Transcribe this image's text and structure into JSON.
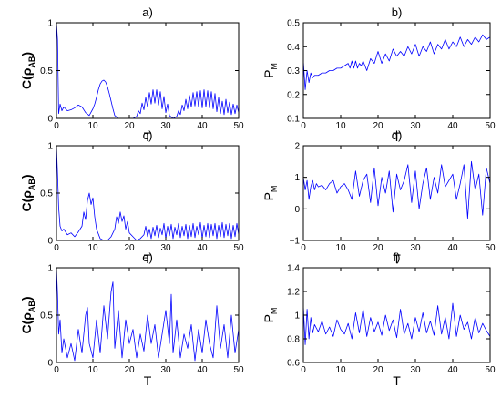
{
  "figure": {
    "line_color": "#0000ff"
  },
  "chart_data": [
    {
      "id": "a",
      "panel_label": "a)",
      "type": "line",
      "xlabel": "T",
      "ylabel_main": "C(ρ",
      "ylabel_sub": "AB",
      "ylabel_end": ")",
      "xlim": [
        0,
        50
      ],
      "ylim": [
        0,
        1
      ],
      "xticks": [
        0,
        10,
        20,
        30,
        40,
        50
      ],
      "yticks": [
        0,
        0.5,
        1
      ],
      "ytick_labels": [
        "0",
        "0.5",
        "1"
      ],
      "grid": false,
      "x": [
        0,
        0.3,
        0.6,
        1,
        1.5,
        2,
        3,
        4,
        5,
        6,
        7,
        8,
        9,
        10,
        10.5,
        11,
        11.5,
        12,
        12.5,
        13,
        13.5,
        14,
        14.5,
        15,
        15.5,
        16,
        17,
        18,
        19,
        20,
        21,
        22,
        22.5,
        23,
        23.5,
        24,
        24.5,
        25,
        25.5,
        26,
        26.5,
        27,
        27.5,
        28,
        28.5,
        29,
        29.5,
        30,
        30.5,
        31,
        32,
        33,
        33.5,
        34,
        34.5,
        35,
        35.5,
        36,
        36.5,
        37,
        37.5,
        38,
        38.5,
        39,
        39.5,
        40,
        40.5,
        41,
        41.5,
        42,
        42.5,
        43,
        43.5,
        44,
        44.5,
        45,
        45.5,
        46,
        46.5,
        47,
        47.5,
        48,
        48.5,
        49,
        49.5,
        50
      ],
      "y": [
        1,
        0.82,
        0.05,
        0.15,
        0.08,
        0.12,
        0.08,
        0.09,
        0.11,
        0.14,
        0.12,
        0.06,
        0.03,
        0.1,
        0.15,
        0.22,
        0.3,
        0.36,
        0.39,
        0.4,
        0.38,
        0.33,
        0.26,
        0.18,
        0.1,
        0.03,
        0.0,
        0.0,
        0.0,
        0.0,
        0.0,
        0.02,
        0.08,
        0.05,
        0.16,
        0.09,
        0.22,
        0.12,
        0.27,
        0.15,
        0.3,
        0.16,
        0.3,
        0.14,
        0.28,
        0.1,
        0.23,
        0.06,
        0.15,
        0.03,
        0.0,
        0.02,
        0.08,
        0.04,
        0.14,
        0.08,
        0.2,
        0.1,
        0.24,
        0.12,
        0.27,
        0.13,
        0.28,
        0.12,
        0.29,
        0.11,
        0.3,
        0.12,
        0.29,
        0.11,
        0.28,
        0.1,
        0.26,
        0.07,
        0.22,
        0.05,
        0.18,
        0.04,
        0.2,
        0.06,
        0.17,
        0.04,
        0.15,
        0.05,
        0.14,
        0.06
      ]
    },
    {
      "id": "b",
      "panel_label": "b)",
      "type": "line",
      "xlabel": "T",
      "ylabel_main": "P",
      "ylabel_sub": "M",
      "ylabel_end": "",
      "xlim": [
        0,
        50
      ],
      "ylim": [
        0.1,
        0.5
      ],
      "xticks": [
        0,
        10,
        20,
        30,
        40,
        50
      ],
      "yticks": [
        0.1,
        0.2,
        0.3,
        0.4,
        0.5
      ],
      "ytick_labels": [
        "0.1",
        "0.2",
        "0.3",
        "0.4",
        "0.5"
      ],
      "grid": false,
      "x": [
        0,
        0.5,
        1,
        1.5,
        2,
        2.5,
        3,
        4,
        5,
        6,
        7,
        8,
        9,
        10,
        11,
        12,
        12.5,
        13,
        13.5,
        14,
        14.5,
        15,
        15.5,
        16,
        17,
        18,
        19,
        20,
        21,
        22,
        23,
        24,
        25,
        26,
        27,
        28,
        29,
        30,
        31,
        32,
        33,
        34,
        35,
        36,
        37,
        38,
        39,
        40,
        41,
        42,
        43,
        44,
        45,
        46,
        47,
        48,
        49,
        50
      ],
      "y": [
        0.34,
        0.22,
        0.3,
        0.25,
        0.29,
        0.27,
        0.28,
        0.28,
        0.29,
        0.29,
        0.3,
        0.3,
        0.31,
        0.31,
        0.32,
        0.33,
        0.31,
        0.34,
        0.31,
        0.34,
        0.31,
        0.33,
        0.32,
        0.34,
        0.3,
        0.35,
        0.33,
        0.38,
        0.33,
        0.37,
        0.34,
        0.39,
        0.36,
        0.38,
        0.36,
        0.4,
        0.37,
        0.41,
        0.36,
        0.4,
        0.38,
        0.42,
        0.37,
        0.41,
        0.39,
        0.43,
        0.39,
        0.42,
        0.4,
        0.44,
        0.4,
        0.43,
        0.41,
        0.44,
        0.42,
        0.45,
        0.43,
        0.44
      ]
    },
    {
      "id": "c",
      "panel_label": "c)",
      "type": "line",
      "xlabel": "T",
      "ylabel_main": "C(ρ",
      "ylabel_sub": "AB",
      "ylabel_end": ")",
      "xlim": [
        0,
        50
      ],
      "ylim": [
        0,
        1
      ],
      "xticks": [
        0,
        10,
        20,
        30,
        40,
        50
      ],
      "yticks": [
        0,
        0.5,
        1
      ],
      "ytick_labels": [
        "0",
        "0.5",
        "1"
      ],
      "grid": false,
      "x": [
        0,
        0.3,
        0.6,
        1,
        1.5,
        2,
        3,
        4,
        5,
        6,
        7,
        7.5,
        8,
        8.5,
        9,
        9.5,
        10,
        10.5,
        11,
        12,
        13,
        14,
        15,
        16,
        16.5,
        17,
        17.5,
        18,
        18.5,
        19,
        19.5,
        20,
        21,
        22,
        23,
        24,
        24.5,
        25,
        25.5,
        26,
        26.5,
        27,
        27.5,
        28,
        28.5,
        29,
        29.5,
        30,
        30.5,
        31,
        31.5,
        32,
        32.5,
        33,
        33.5,
        34,
        34.5,
        35,
        35.5,
        36,
        36.5,
        37,
        37.5,
        38,
        38.5,
        39,
        39.5,
        40,
        40.5,
        41,
        41.5,
        42,
        42.5,
        43,
        43.5,
        44,
        44.5,
        45,
        45.5,
        46,
        46.5,
        47,
        47.5,
        48,
        48.5,
        49,
        49.5,
        50
      ],
      "y": [
        1,
        0.7,
        0.35,
        0.15,
        0.1,
        0.12,
        0.06,
        0.08,
        0.04,
        0.09,
        0.15,
        0.3,
        0.22,
        0.42,
        0.5,
        0.38,
        0.45,
        0.25,
        0.12,
        0.02,
        0.0,
        0.0,
        0.04,
        0.12,
        0.25,
        0.18,
        0.3,
        0.2,
        0.26,
        0.12,
        0.2,
        0.08,
        0.04,
        0.0,
        0.02,
        0.06,
        0.15,
        0.04,
        0.12,
        0.02,
        0.14,
        0.05,
        0.16,
        0.03,
        0.13,
        0.06,
        0.18,
        0.02,
        0.15,
        0.05,
        0.17,
        0.02,
        0.14,
        0.06,
        0.18,
        0.03,
        0.15,
        0.05,
        0.17,
        0.02,
        0.16,
        0.04,
        0.18,
        0.03,
        0.15,
        0.06,
        0.19,
        0.02,
        0.16,
        0.04,
        0.18,
        0.03,
        0.17,
        0.05,
        0.18,
        0.02,
        0.16,
        0.04,
        0.19,
        0.03,
        0.17,
        0.05,
        0.18,
        0.02,
        0.16,
        0.04,
        0.18,
        0.06
      ]
    },
    {
      "id": "d",
      "panel_label": "d)",
      "type": "line",
      "xlabel": "T",
      "ylabel_main": "P",
      "ylabel_sub": "M",
      "ylabel_end": "",
      "xlim": [
        0,
        50
      ],
      "ylim": [
        -1,
        2
      ],
      "xticks": [
        0,
        10,
        20,
        30,
        40,
        50
      ],
      "yticks": [
        -1,
        0,
        1,
        2
      ],
      "ytick_labels": [
        "−1",
        "0",
        "1",
        "2"
      ],
      "grid": false,
      "x": [
        0,
        0.5,
        1,
        1.5,
        2,
        2.5,
        3,
        3.5,
        4,
        5,
        6,
        7,
        8,
        9,
        10,
        11,
        12,
        13,
        14,
        15,
        16,
        17,
        18,
        19,
        20,
        21,
        22,
        23,
        24,
        25,
        26,
        27,
        28,
        29,
        30,
        31,
        32,
        33,
        34,
        35,
        36,
        37,
        38,
        39,
        40,
        41,
        42,
        43,
        44,
        45,
        46,
        47,
        48,
        49,
        50
      ],
      "y": [
        1.0,
        0.6,
        0.9,
        0.3,
        0.7,
        0.9,
        0.6,
        0.8,
        0.7,
        0.75,
        0.6,
        0.8,
        0.9,
        0.5,
        0.7,
        0.8,
        0.6,
        0.3,
        1.2,
        0.4,
        0.9,
        1.1,
        0.2,
        1.3,
        0.1,
        1.0,
        0.5,
        1.2,
        -0.1,
        1.1,
        0.6,
        0.9,
        1.4,
        0.2,
        1.2,
        0.0,
        0.8,
        1.3,
        0.3,
        1.0,
        0.5,
        1.4,
        0.7,
        0.9,
        1.1,
        0.3,
        0.8,
        1.4,
        -0.3,
        1.5,
        0.6,
        1.1,
        -0.2,
        1.3,
        0.8
      ]
    },
    {
      "id": "e",
      "panel_label": "e)",
      "type": "line",
      "xlabel": "T",
      "ylabel_main": "C(ρ",
      "ylabel_sub": "AB",
      "ylabel_end": ")",
      "xlim": [
        0,
        50
      ],
      "ylim": [
        0,
        1
      ],
      "xticks": [
        0,
        10,
        20,
        30,
        40,
        50
      ],
      "yticks": [
        0,
        0.5,
        1
      ],
      "ytick_labels": [
        "0",
        "0.5",
        "1"
      ],
      "grid": false,
      "x": [
        0,
        0.3,
        0.6,
        1,
        1.5,
        2,
        3,
        4,
        5,
        6,
        7,
        8,
        8.5,
        9,
        10,
        11,
        12,
        13,
        14,
        15,
        15.5,
        16,
        17,
        18,
        19,
        20,
        21,
        22,
        23,
        24,
        25,
        26,
        27,
        28,
        29,
        30,
        31,
        31.5,
        32,
        33,
        34,
        35,
        36,
        37,
        38,
        39,
        40,
        41,
        42,
        43,
        44,
        45,
        46,
        47,
        48,
        49,
        50
      ],
      "y": [
        1,
        0.72,
        0.3,
        0.45,
        0.1,
        0.25,
        0.05,
        0.2,
        0.02,
        0.35,
        0.1,
        0.5,
        0.58,
        0.2,
        0.05,
        0.45,
        0.1,
        0.6,
        0.25,
        0.75,
        0.85,
        0.15,
        0.55,
        0.05,
        0.45,
        0.2,
        0.35,
        0.05,
        0.3,
        0.12,
        0.5,
        0.2,
        0.4,
        0.05,
        0.3,
        0.55,
        0.2,
        0.72,
        0.1,
        0.45,
        0.05,
        0.3,
        0.15,
        0.4,
        0.02,
        0.35,
        0.1,
        0.45,
        0.2,
        0.05,
        0.6,
        0.15,
        0.4,
        0.05,
        0.5,
        0.1,
        0.35
      ]
    },
    {
      "id": "f",
      "panel_label": "f)",
      "type": "line",
      "xlabel": "T",
      "ylabel_main": "P",
      "ylabel_sub": "M",
      "ylabel_end": "",
      "xlim": [
        0,
        50
      ],
      "ylim": [
        0.6,
        1.4
      ],
      "xticks": [
        0,
        10,
        20,
        30,
        40,
        50
      ],
      "yticks": [
        0.6,
        0.8,
        1.0,
        1.2,
        1.4
      ],
      "ytick_labels": [
        "0.6",
        "0.8",
        "1",
        "1.2",
        "1.4"
      ],
      "grid": false,
      "x": [
        0,
        0.5,
        1,
        1.5,
        2,
        2.5,
        3,
        4,
        5,
        6,
        7,
        8,
        9,
        10,
        11,
        12,
        13,
        14,
        15,
        16,
        17,
        18,
        19,
        20,
        21,
        22,
        23,
        24,
        25,
        26,
        27,
        28,
        29,
        30,
        31,
        32,
        33,
        34,
        35,
        36,
        37,
        38,
        39,
        40,
        41,
        42,
        43,
        44,
        45,
        46,
        47,
        48,
        49,
        50
      ],
      "y": [
        1.08,
        0.75,
        1.05,
        0.8,
        0.98,
        0.85,
        0.92,
        0.86,
        0.95,
        0.84,
        0.9,
        0.82,
        0.96,
        0.88,
        0.84,
        0.93,
        0.8,
        1.02,
        0.85,
        1.05,
        0.82,
        0.98,
        0.86,
        0.94,
        0.83,
        1.0,
        0.87,
        0.96,
        0.81,
        1.05,
        0.84,
        0.93,
        0.8,
        0.98,
        0.86,
        1.02,
        0.85,
        0.95,
        0.83,
        1.08,
        0.84,
        0.98,
        0.8,
        1.1,
        0.82,
        1.0,
        0.88,
        0.94,
        0.8,
        0.98,
        0.85,
        0.93,
        0.87,
        0.82
      ]
    }
  ]
}
